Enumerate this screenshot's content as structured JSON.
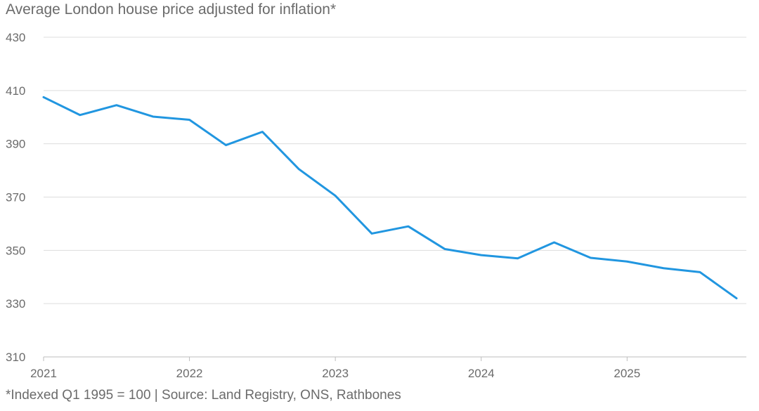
{
  "title": "Average London house price adjusted for inflation*",
  "footnote": "*Indexed Q1 1995 = 100 | Source: Land Registry, ONS, Rathbones",
  "colors": {
    "line": "#2196e0"
  },
  "chart_data": {
    "type": "line",
    "title": "Average London house price adjusted for inflation*",
    "xlabel": "",
    "ylabel": "",
    "ylim": [
      310,
      430
    ],
    "xlim": [
      2021,
      2025.75
    ],
    "yticks": [
      310,
      330,
      350,
      370,
      390,
      410,
      430
    ],
    "xticks": [
      2021,
      2022,
      2023,
      2024,
      2025
    ],
    "grid": true,
    "legend": "none",
    "series": [
      {
        "x": [
          2021,
          2021.25,
          2021.5,
          2021.75,
          2022,
          2022.25,
          2022.5,
          2022.75,
          2023,
          2023.25,
          2023.5,
          2023.75,
          2024,
          2024.25,
          2024.5,
          2024.75,
          2025,
          2025.25,
          2025.5,
          2025.75
        ],
        "values": [
          407.5,
          400.8,
          404.5,
          400.2,
          399.0,
          389.5,
          394.5,
          380.5,
          370.5,
          356.3,
          359.0,
          350.5,
          348.2,
          347.0,
          353.0,
          347.2,
          345.8,
          343.3,
          341.8,
          332.0
        ]
      }
    ]
  }
}
